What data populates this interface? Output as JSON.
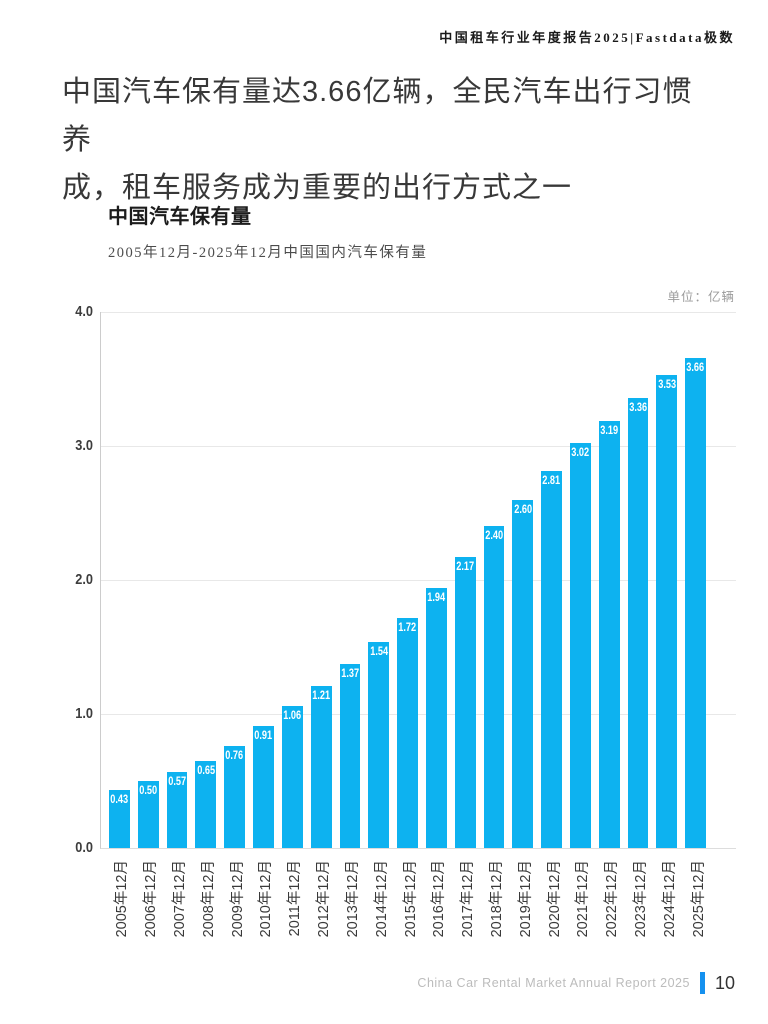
{
  "page": {
    "header": "中国租车行业年度报告2025|Fastdata极数",
    "title_line1": "中国汽车保有量达3.66亿辆，全民汽车出行习惯养",
    "title_line2": "成，租车服务成为重要的出行方式之一",
    "footer_text": "China Car Rental Market Annual Report 2025",
    "page_number": "10"
  },
  "chart": {
    "title": "中国汽车保有量",
    "subtitle": "2005年12月-2025年12月中国国内汽车保有量",
    "unit_label": "单位：亿辆"
  },
  "chart_data": {
    "type": "bar",
    "title": "中国汽车保有量",
    "subtitle": "2005年12月-2025年12月中国国内汽车保有量",
    "unit": "亿辆",
    "categories": [
      "2005年12月",
      "2006年12月",
      "2007年12月",
      "2008年12月",
      "2009年12月",
      "2010年12月",
      "2011年12月",
      "2012年12月",
      "2013年12月",
      "2014年12月",
      "2015年12月",
      "2016年12月",
      "2017年12月",
      "2018年12月",
      "2019年12月",
      "2020年12月",
      "2021年12月",
      "2022年12月",
      "2023年12月",
      "2024年12月",
      "2025年12月"
    ],
    "values": [
      0.43,
      0.5,
      0.57,
      0.65,
      0.76,
      0.91,
      1.06,
      1.21,
      1.37,
      1.54,
      1.72,
      1.94,
      2.17,
      2.4,
      2.6,
      2.81,
      3.02,
      3.19,
      3.36,
      3.53,
      3.66
    ],
    "ylim": [
      0,
      4.0
    ],
    "yticks": [
      0.0,
      1.0,
      2.0,
      3.0,
      4.0
    ],
    "grid": true,
    "legend": "none",
    "value_labels": "inside-top"
  },
  "colors": {
    "bar": "#0db2f0",
    "bar_label": "#ffffff",
    "grid": "#e8e8e8",
    "axis": "#cccccc",
    "footer_accent": "#1591ef"
  }
}
